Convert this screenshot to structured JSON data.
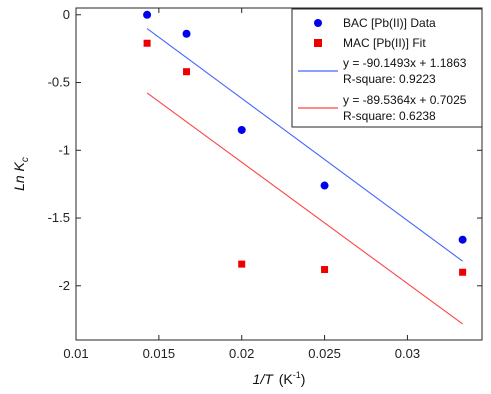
{
  "chart_data": {
    "type": "scatter",
    "xlabel": {
      "main": "1/T",
      "unit": "(K",
      "sup": "-1",
      "close": ")"
    },
    "ylabel": {
      "main": "Ln K",
      "sub": "c"
    },
    "xlim": [
      0.01,
      0.0345
    ],
    "ylim": [
      -2.4,
      0.05
    ],
    "xticks": [
      0.01,
      0.015,
      0.02,
      0.025,
      0.03
    ],
    "xtick_labels": [
      "0.01",
      "0.015",
      "0.02",
      "0.025",
      "0.03"
    ],
    "yticks": [
      0,
      -0.5,
      -1,
      -1.5,
      -2
    ],
    "ytick_labels": [
      "0",
      "-0.5",
      "-1",
      "-1.5",
      "-2"
    ],
    "grid": false,
    "legend_position": "top-right",
    "series": [
      {
        "name": "BAC [Pb(II)] Data",
        "marker": "circle",
        "color": "#0000ee",
        "x": [
          0.01429,
          0.01667,
          0.02,
          0.025,
          0.03333
        ],
        "y": [
          0.0,
          -0.14,
          -0.85,
          -1.26,
          -1.66
        ]
      },
      {
        "name": "MAC [Pb(II)] Fit",
        "marker": "square",
        "color": "#ee0000",
        "x": [
          0.01429,
          0.01667,
          0.02,
          0.025,
          0.03333
        ],
        "y": [
          -0.21,
          -0.42,
          -1.84,
          -1.88,
          -1.9
        ]
      }
    ],
    "fits": [
      {
        "color": "#4466ff",
        "equation": "y = -90.1493x + 1.1863",
        "r_square": "R-square: 0.9223",
        "slope": -90.1493,
        "intercept": 1.1863,
        "x_range": [
          0.01429,
          0.03333
        ]
      },
      {
        "color": "#ff4444",
        "equation": "y = -89.5364x + 0.7025",
        "r_square": "R-square: 0.6238",
        "slope": -89.5364,
        "intercept": 0.7025,
        "x_range": [
          0.01429,
          0.03333
        ]
      }
    ]
  }
}
